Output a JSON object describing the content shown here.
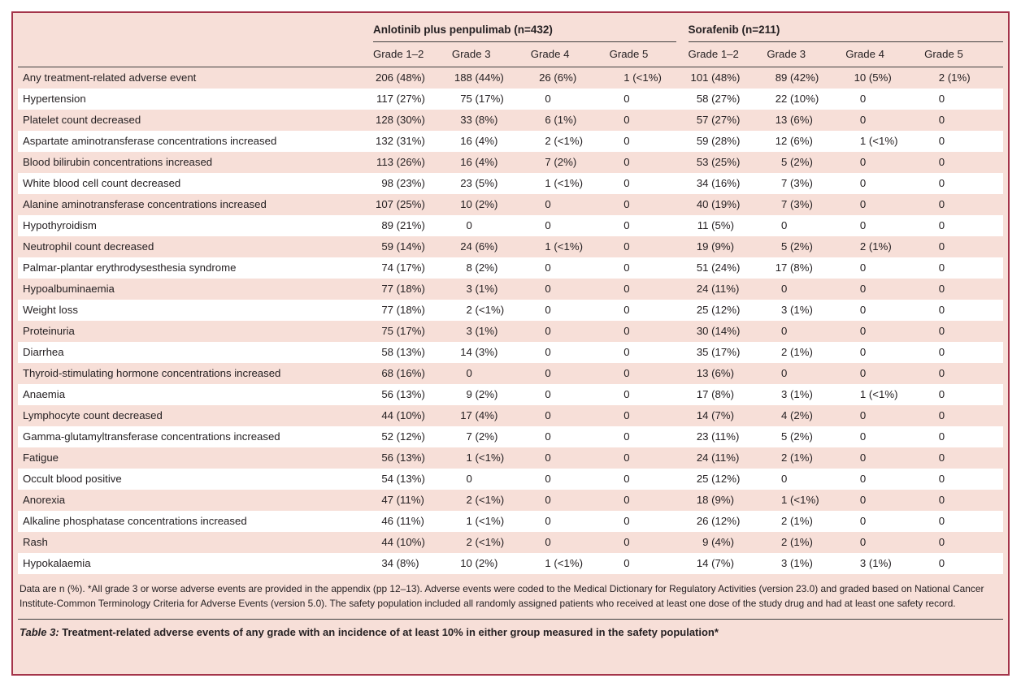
{
  "colors": {
    "frame_border": "#a4344a",
    "background_pink": "#f7dfd8",
    "stripe_white": "#ffffff",
    "rule_dark": "#3f3f3f",
    "text": "#262123"
  },
  "table": {
    "group_headers": [
      "Anlotinib plus penpulimab (n=432)",
      "Sorafenib (n=211)"
    ],
    "grade_headers": [
      "Grade 1–2",
      "Grade 3",
      "Grade 4",
      "Grade 5",
      "Grade 1–2",
      "Grade 3",
      "Grade 4",
      "Grade 5"
    ],
    "rows": [
      {
        "label": "Any treatment-related adverse event",
        "values": [
          "206 (48%)",
          "188 (44%)",
          "26 (6%)",
          "1 (<1%)",
          "101 (48%)",
          "89 (42%)",
          "10 (5%)",
          "2 (1%)"
        ]
      },
      {
        "label": "Hypertension",
        "values": [
          "117 (27%)",
          "75 (17%)",
          "0",
          "0",
          "58 (27%)",
          "22 (10%)",
          "0",
          "0"
        ]
      },
      {
        "label": "Platelet count decreased",
        "values": [
          "128 (30%)",
          "33 (8%)",
          "6 (1%)",
          "0",
          "57 (27%)",
          "13 (6%)",
          "0",
          "0"
        ]
      },
      {
        "label": "Aspartate aminotransferase concentrations increased",
        "values": [
          "132 (31%)",
          "16 (4%)",
          "2 (<1%)",
          "0",
          "59 (28%)",
          "12 (6%)",
          "1 (<1%)",
          "0"
        ]
      },
      {
        "label": "Blood bilirubin concentrations increased",
        "values": [
          "113 (26%)",
          "16 (4%)",
          "7 (2%)",
          "0",
          "53 (25%)",
          "5 (2%)",
          "0",
          "0"
        ]
      },
      {
        "label": "White blood cell count decreased",
        "values": [
          "98 (23%)",
          "23 (5%)",
          "1 (<1%)",
          "0",
          "34 (16%)",
          "7 (3%)",
          "0",
          "0"
        ]
      },
      {
        "label": "Alanine aminotransferase concentrations increased",
        "values": [
          "107 (25%)",
          "10 (2%)",
          "0",
          "0",
          "40 (19%)",
          "7 (3%)",
          "0",
          "0"
        ]
      },
      {
        "label": "Hypothyroidism",
        "values": [
          "89 (21%)",
          "0",
          "0",
          "0",
          "11 (5%)",
          "0",
          "0",
          "0"
        ]
      },
      {
        "label": "Neutrophil count decreased",
        "values": [
          "59 (14%)",
          "24 (6%)",
          "1 (<1%)",
          "0",
          "19 (9%)",
          "5 (2%)",
          "2 (1%)",
          "0"
        ]
      },
      {
        "label": "Palmar-plantar erythrodysesthesia syndrome",
        "values": [
          "74 (17%)",
          "8 (2%)",
          "0",
          "0",
          "51 (24%)",
          "17 (8%)",
          "0",
          "0"
        ]
      },
      {
        "label": "Hypoalbuminaemia",
        "values": [
          "77 (18%)",
          "3 (1%)",
          "0",
          "0",
          "24 (11%)",
          "0",
          "0",
          "0"
        ]
      },
      {
        "label": "Weight loss",
        "values": [
          "77 (18%)",
          "2 (<1%)",
          "0",
          "0",
          "25 (12%)",
          "3 (1%)",
          "0",
          "0"
        ]
      },
      {
        "label": "Proteinuria",
        "values": [
          "75 (17%)",
          "3 (1%)",
          "0",
          "0",
          "30 (14%)",
          "0",
          "0",
          "0"
        ]
      },
      {
        "label": "Diarrhea",
        "values": [
          "58 (13%)",
          "14 (3%)",
          "0",
          "0",
          "35 (17%)",
          "2 (1%)",
          "0",
          "0"
        ]
      },
      {
        "label": "Thyroid-stimulating hormone concentrations increased",
        "values": [
          "68 (16%)",
          "0",
          "0",
          "0",
          "13 (6%)",
          "0",
          "0",
          "0"
        ]
      },
      {
        "label": "Anaemia",
        "values": [
          "56 (13%)",
          "9 (2%)",
          "0",
          "0",
          "17 (8%)",
          "3 (1%)",
          "1 (<1%)",
          "0"
        ]
      },
      {
        "label": "Lymphocyte count decreased",
        "values": [
          "44 (10%)",
          "17 (4%)",
          "0",
          "0",
          "14 (7%)",
          "4 (2%)",
          "0",
          "0"
        ]
      },
      {
        "label": "Gamma-glutamyltransferase concentrations increased",
        "values": [
          "52 (12%)",
          "7 (2%)",
          "0",
          "0",
          "23 (11%)",
          "5 (2%)",
          "0",
          "0"
        ]
      },
      {
        "label": "Fatigue",
        "values": [
          "56 (13%)",
          "1 (<1%)",
          "0",
          "0",
          "24 (11%)",
          "2 (1%)",
          "0",
          "0"
        ]
      },
      {
        "label": "Occult blood positive",
        "values": [
          "54 (13%)",
          "0",
          "0",
          "0",
          "25 (12%)",
          "0",
          "0",
          "0"
        ]
      },
      {
        "label": "Anorexia",
        "values": [
          "47 (11%)",
          "2 (<1%)",
          "0",
          "0",
          "18 (9%)",
          "1 (<1%)",
          "0",
          "0"
        ]
      },
      {
        "label": "Alkaline phosphatase concentrations increased",
        "values": [
          "46 (11%)",
          "1 (<1%)",
          "0",
          "0",
          "26 (12%)",
          "2 (1%)",
          "0",
          "0"
        ]
      },
      {
        "label": "Rash",
        "values": [
          "44 (10%)",
          "2 (<1%)",
          "0",
          "0",
          "9 (4%)",
          "2 (1%)",
          "0",
          "0"
        ]
      },
      {
        "label": "Hypokalaemia",
        "values": [
          "34 (8%)",
          "10 (2%)",
          "1 (<1%)",
          "0",
          "14 (7%)",
          "3 (1%)",
          "3 (1%)",
          "0"
        ]
      }
    ],
    "footnote": "Data are n (%). *All grade 3 or worse adverse events are provided in the appendix (pp 12–13). Adverse events were coded to the Medical Dictionary for Regulatory Activities (version 23.0) and graded based on National Cancer Institute-Common Terminology Criteria for Adverse Events (version 5.0). The safety population included all randomly assigned patients who received at least one dose of the study drug and had at least one safety record.",
    "caption_label": "Table 3:",
    "caption_text": " Treatment-related adverse events of any grade with an incidence of at least 10% in either group measured in the safety population*"
  }
}
